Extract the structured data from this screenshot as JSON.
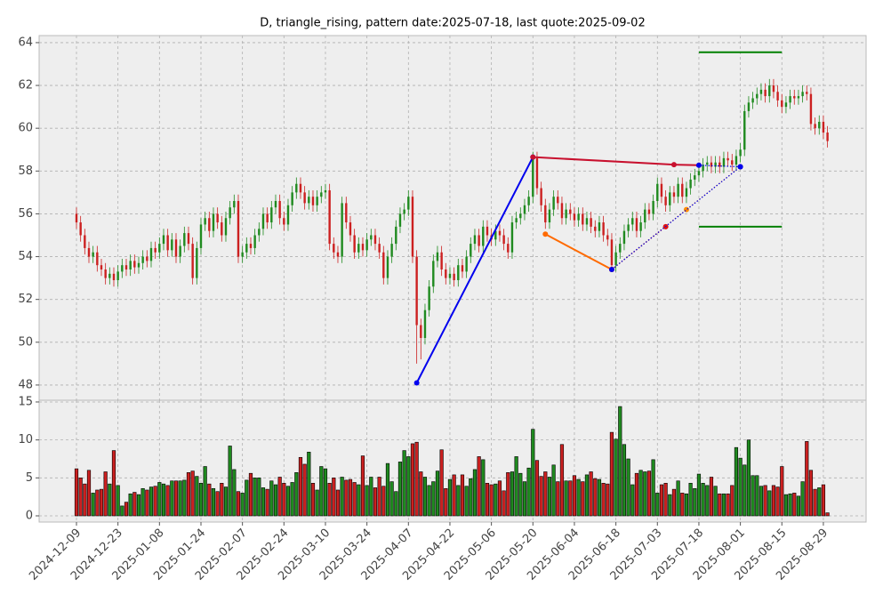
{
  "chart_data": {
    "type": "candlestick",
    "title": "D, triangle_rising, pattern date:2025-07-18, last quote:2025-09-02",
    "grid": true,
    "up_color": "#1f8a1f",
    "down_color": "#cc2020",
    "xlim": [
      -9,
      190.3
    ],
    "xticks": [
      {
        "value": 0,
        "label": "2024-12-09"
      },
      {
        "value": 10,
        "label": "2024-12-23"
      },
      {
        "value": 20,
        "label": "2025-01-08"
      },
      {
        "value": 30,
        "label": "2025-01-24"
      },
      {
        "value": 40,
        "label": "2025-02-07"
      },
      {
        "value": 50,
        "label": "2025-02-24"
      },
      {
        "value": 60,
        "label": "2025-03-10"
      },
      {
        "value": 70,
        "label": "2025-03-24"
      },
      {
        "value": 80,
        "label": "2025-04-07"
      },
      {
        "value": 90,
        "label": "2025-04-22"
      },
      {
        "value": 100,
        "label": "2025-05-06"
      },
      {
        "value": 110,
        "label": "2025-05-20"
      },
      {
        "value": 120,
        "label": "2025-06-04"
      },
      {
        "value": 130,
        "label": "2025-06-18"
      },
      {
        "value": 140,
        "label": "2025-07-03"
      },
      {
        "value": 150,
        "label": "2025-07-18"
      },
      {
        "value": 160,
        "label": "2025-08-01"
      },
      {
        "value": 170,
        "label": "2025-08-15"
      },
      {
        "value": 180,
        "label": "2025-08-29"
      }
    ],
    "ylim": [
      47.29,
      64.33
    ],
    "yticks": [
      48,
      50,
      52,
      54,
      56,
      58,
      60,
      62,
      64
    ],
    "volume_ylim": [
      -0.82,
      15.23
    ],
    "volume_yticks": [
      0,
      5,
      10,
      15
    ],
    "open": [
      56.0,
      55.6,
      55.0,
      54.4,
      54.0,
      54.2,
      53.6,
      53.4,
      53.0,
      53.2,
      52.9,
      53.3,
      53.6,
      53.4,
      53.8,
      53.5,
      53.7,
      54.0,
      53.8,
      54.4,
      54.2,
      54.6,
      55.0,
      54.3,
      54.8,
      54.0,
      54.5,
      55.1,
      54.6,
      53.0,
      54.4,
      55.5,
      55.8,
      55.2,
      56.0,
      55.6,
      55.0,
      55.8,
      56.3,
      56.6,
      54.0,
      54.2,
      54.6,
      54.4,
      55.0,
      55.3,
      56.0,
      55.6,
      56.3,
      56.6,
      55.8,
      55.5,
      56.4,
      57.0,
      57.4,
      57.0,
      56.5,
      56.8,
      56.4,
      56.8,
      57.0,
      57.1,
      54.6,
      54.2,
      54.0,
      56.5,
      55.6,
      55.0,
      54.2,
      54.6,
      54.3,
      54.8,
      55.0,
      54.6,
      54.2,
      53.0,
      54.0,
      54.6,
      55.4,
      56.0,
      56.2,
      56.8,
      54.0,
      50.8,
      50.2,
      51.5,
      52.6,
      53.8,
      54.2,
      53.4,
      53.0,
      53.2,
      52.9,
      53.6,
      53.3,
      54.0,
      54.6,
      55.0,
      54.5,
      55.4,
      55.0,
      54.8,
      55.2,
      55.0,
      54.6,
      54.2,
      55.6,
      55.8,
      56.0,
      56.4,
      56.8,
      58.6,
      57.2,
      56.4,
      55.6,
      56.2,
      56.8,
      56.5,
      55.8,
      56.2,
      56.0,
      55.7,
      56.0,
      55.5,
      55.8,
      55.4,
      55.2,
      55.6,
      55.0,
      54.8,
      53.6,
      54.2,
      54.6,
      55.2,
      55.5,
      55.8,
      55.2,
      55.6,
      56.2,
      56.0,
      56.6,
      57.4,
      56.8,
      56.4,
      57.0,
      56.8,
      57.4,
      56.8,
      57.2,
      57.6,
      57.8,
      58.0,
      58.3,
      58.4,
      58.2,
      58.4,
      58.2,
      58.6,
      58.5,
      58.3,
      58.7,
      59.0,
      60.8,
      61.2,
      61.4,
      61.6,
      61.8,
      61.5,
      62.0,
      61.7,
      61.3,
      61.0,
      61.2,
      61.5,
      61.4,
      61.5,
      61.7,
      61.6,
      60.2,
      60.0,
      60.3,
      59.8
    ],
    "high": [
      56.3,
      55.9,
      55.3,
      54.7,
      54.5,
      54.5,
      53.9,
      53.7,
      53.5,
      53.5,
      53.6,
      53.9,
      53.9,
      54.1,
      54.1,
      54.0,
      54.3,
      54.3,
      54.7,
      54.7,
      54.9,
      55.3,
      55.3,
      55.1,
      55.1,
      54.8,
      55.4,
      55.4,
      54.9,
      54.7,
      55.8,
      56.1,
      56.1,
      56.3,
      56.3,
      55.9,
      56.1,
      56.6,
      56.9,
      56.9,
      54.5,
      54.9,
      54.9,
      55.3,
      55.6,
      56.3,
      56.3,
      56.6,
      56.9,
      56.9,
      56.1,
      56.7,
      57.3,
      57.7,
      57.7,
      57.3,
      57.1,
      57.1,
      57.1,
      57.3,
      57.4,
      57.4,
      54.9,
      54.5,
      56.8,
      56.8,
      55.9,
      55.3,
      54.9,
      54.9,
      55.1,
      55.3,
      55.3,
      54.9,
      54.5,
      54.3,
      54.9,
      55.7,
      56.3,
      56.5,
      57.1,
      57.1,
      54.3,
      51.1,
      51.8,
      52.9,
      54.1,
      54.5,
      54.5,
      53.7,
      53.5,
      53.5,
      53.9,
      53.9,
      54.3,
      54.9,
      55.3,
      55.3,
      55.7,
      55.7,
      55.3,
      55.5,
      55.5,
      55.3,
      54.9,
      55.9,
      56.1,
      56.3,
      56.7,
      57.1,
      58.9,
      58.9,
      57.5,
      56.7,
      56.5,
      57.1,
      57.1,
      56.8,
      56.5,
      56.5,
      56.3,
      56.3,
      56.3,
      56.1,
      56.1,
      55.7,
      55.9,
      55.9,
      55.3,
      55.1,
      54.5,
      54.9,
      55.5,
      55.8,
      56.1,
      56.1,
      55.9,
      56.5,
      56.5,
      56.9,
      57.7,
      57.7,
      57.1,
      57.3,
      57.3,
      57.7,
      57.7,
      57.5,
      57.9,
      58.1,
      58.3,
      58.6,
      58.7,
      58.7,
      58.7,
      58.7,
      58.9,
      58.9,
      58.8,
      59.0,
      59.3,
      61.1,
      61.5,
      61.7,
      61.9,
      62.1,
      62.1,
      62.3,
      62.3,
      62.0,
      61.6,
      61.5,
      61.8,
      61.8,
      61.8,
      62.0,
      62.0,
      61.9,
      60.5,
      60.6,
      60.6,
      60.1
    ],
    "low": [
      55.3,
      54.7,
      54.1,
      53.7,
      53.7,
      53.3,
      53.1,
      52.7,
      52.7,
      52.6,
      52.6,
      53.0,
      53.1,
      53.1,
      53.2,
      53.2,
      53.4,
      53.5,
      53.5,
      53.9,
      53.9,
      54.3,
      54.0,
      54.0,
      53.7,
      53.7,
      54.2,
      54.3,
      52.7,
      52.7,
      54.1,
      55.2,
      54.9,
      54.9,
      55.3,
      54.7,
      54.7,
      55.5,
      56.0,
      53.7,
      53.7,
      53.9,
      54.1,
      54.1,
      54.7,
      55.0,
      55.3,
      55.3,
      56.0,
      55.5,
      55.2,
      55.2,
      56.1,
      56.7,
      56.7,
      56.2,
      56.2,
      56.1,
      56.1,
      56.5,
      56.7,
      54.3,
      53.9,
      53.7,
      53.7,
      55.3,
      54.7,
      53.9,
      53.9,
      54.0,
      54.0,
      54.5,
      54.3,
      53.9,
      52.7,
      52.7,
      53.7,
      54.3,
      55.1,
      55.7,
      55.9,
      53.7,
      49.0,
      49.2,
      49.9,
      51.2,
      52.3,
      53.5,
      53.1,
      52.7,
      52.7,
      52.6,
      52.6,
      53.0,
      53.0,
      53.7,
      54.3,
      54.2,
      54.2,
      54.7,
      54.5,
      54.5,
      54.7,
      54.3,
      53.9,
      53.9,
      55.3,
      55.5,
      55.7,
      56.1,
      56.5,
      56.9,
      56.1,
      55.3,
      55.3,
      55.9,
      56.2,
      55.5,
      55.5,
      55.7,
      55.4,
      55.4,
      55.2,
      55.2,
      55.1,
      54.9,
      54.9,
      54.7,
      54.5,
      53.3,
      53.3,
      53.9,
      54.3,
      54.9,
      55.2,
      54.9,
      54.9,
      55.3,
      55.7,
      55.7,
      56.3,
      56.5,
      56.1,
      56.1,
      56.5,
      56.5,
      56.5,
      56.5,
      56.9,
      57.3,
      57.5,
      57.7,
      58.0,
      57.9,
      57.9,
      57.9,
      57.9,
      58.2,
      58.0,
      58.0,
      58.4,
      58.7,
      60.5,
      60.9,
      61.1,
      61.3,
      61.2,
      61.2,
      61.4,
      61.0,
      60.7,
      60.7,
      60.9,
      61.1,
      61.1,
      61.2,
      61.3,
      59.9,
      59.7,
      59.7,
      59.5,
      59.1
    ],
    "close": [
      55.6,
      55.0,
      54.4,
      54.0,
      54.2,
      53.6,
      53.4,
      53.0,
      53.2,
      52.9,
      53.3,
      53.6,
      53.4,
      53.8,
      53.5,
      53.7,
      54.0,
      53.8,
      54.4,
      54.2,
      54.6,
      55.0,
      54.3,
      54.8,
      54.0,
      54.5,
      55.1,
      54.6,
      53.0,
      54.4,
      55.5,
      55.8,
      55.2,
      56.0,
      55.6,
      55.0,
      55.8,
      56.3,
      56.6,
      54.0,
      54.2,
      54.6,
      54.4,
      55.0,
      55.3,
      56.0,
      55.6,
      56.3,
      56.6,
      55.8,
      55.5,
      56.4,
      57.0,
      57.4,
      57.0,
      56.5,
      56.8,
      56.4,
      56.8,
      57.0,
      57.1,
      54.6,
      54.2,
      54.0,
      56.5,
      55.6,
      55.0,
      54.2,
      54.6,
      54.3,
      54.8,
      55.0,
      54.6,
      54.2,
      53.0,
      54.0,
      54.6,
      55.4,
      56.0,
      56.2,
      56.8,
      54.0,
      50.8,
      50.2,
      51.5,
      52.6,
      53.8,
      54.2,
      53.4,
      53.0,
      53.2,
      52.9,
      53.6,
      53.3,
      54.0,
      54.6,
      55.0,
      54.5,
      55.4,
      55.0,
      54.8,
      55.2,
      55.0,
      54.6,
      54.2,
      55.6,
      55.8,
      56.0,
      56.4,
      56.8,
      58.6,
      57.2,
      56.4,
      55.6,
      56.2,
      56.8,
      56.5,
      55.8,
      56.2,
      56.0,
      55.7,
      56.0,
      55.5,
      55.8,
      55.4,
      55.2,
      55.6,
      55.0,
      54.8,
      53.6,
      54.2,
      54.6,
      55.2,
      55.5,
      55.8,
      55.2,
      55.6,
      56.2,
      56.0,
      56.6,
      57.4,
      56.8,
      56.4,
      57.0,
      56.8,
      57.4,
      56.8,
      57.2,
      57.6,
      57.8,
      58.0,
      58.3,
      58.4,
      58.2,
      58.4,
      58.2,
      58.6,
      58.5,
      58.3,
      58.7,
      59.0,
      60.8,
      61.2,
      61.4,
      61.6,
      61.8,
      61.5,
      62.0,
      61.7,
      61.3,
      61.0,
      61.2,
      61.5,
      61.4,
      61.5,
      61.7,
      61.6,
      60.2,
      60.0,
      60.3,
      59.8,
      59.4
    ],
    "volume": [
      6.2,
      5.0,
      4.2,
      6.0,
      3.0,
      3.4,
      3.5,
      5.8,
      4.2,
      8.6,
      4.0,
      1.3,
      1.8,
      2.9,
      3.1,
      2.8,
      3.6,
      3.4,
      3.8,
      3.9,
      4.4,
      4.2,
      4.0,
      4.6,
      4.6,
      4.6,
      4.7,
      5.7,
      5.9,
      5.2,
      4.3,
      6.5,
      4.2,
      3.6,
      3.2,
      4.3,
      3.8,
      9.2,
      6.1,
      3.2,
      3.0,
      4.7,
      5.6,
      5.0,
      5.0,
      3.7,
      3.5,
      4.6,
      4.1,
      5.1,
      4.3,
      3.9,
      4.4,
      5.7,
      7.7,
      6.8,
      8.4,
      4.3,
      3.4,
      6.5,
      6.2,
      4.3,
      5.0,
      3.4,
      5.1,
      4.7,
      4.8,
      4.4,
      4.1,
      7.9,
      4.0,
      5.1,
      3.7,
      5.1,
      3.9,
      6.9,
      4.5,
      3.2,
      7.1,
      8.6,
      7.8,
      9.5,
      9.7,
      5.8,
      5.1,
      4.0,
      4.5,
      5.9,
      8.7,
      3.6,
      4.8,
      5.4,
      4.0,
      5.4,
      3.9,
      4.9,
      6.1,
      7.8,
      7.4,
      4.3,
      4.1,
      4.2,
      4.6,
      3.3,
      5.7,
      5.8,
      7.8,
      5.6,
      4.5,
      6.3,
      11.4,
      7.3,
      5.2,
      5.8,
      5.1,
      6.7,
      4.5,
      9.4,
      4.6,
      4.6,
      5.3,
      4.8,
      4.5,
      5.4,
      5.8,
      4.9,
      4.8,
      4.3,
      4.2,
      11.0,
      10.1,
      14.4,
      9.4,
      7.5,
      4.1,
      5.6,
      6.0,
      5.8,
      5.9,
      7.4,
      3.0,
      4.1,
      4.3,
      2.8,
      3.5,
      4.6,
      3.0,
      2.9,
      4.3,
      3.6,
      5.5,
      4.3,
      4.0,
      5.1,
      3.9,
      2.9,
      2.9,
      2.9,
      4.0,
      9.0,
      7.6,
      6.7,
      10.0,
      5.3,
      5.3,
      3.9,
      4.0,
      3.3,
      4.0,
      3.8,
      6.5,
      2.8,
      2.9,
      3.0,
      2.6,
      4.5,
      9.8,
      6.0,
      3.5,
      3.7,
      4.1,
      0.4
    ],
    "overlays": [
      {
        "color": "#0000ee",
        "style": "solid",
        "markers": true,
        "x": [
          82,
          110
        ],
        "values": [
          48.1,
          58.65
        ]
      },
      {
        "color": "#c8102e",
        "style": "solid",
        "markers": true,
        "x": [
          110,
          144,
          150
        ],
        "values": [
          58.65,
          58.3,
          58.27
        ]
      },
      {
        "color": "#ff6a00",
        "style": "solid",
        "markers": true,
        "x": [
          113,
          129
        ],
        "values": [
          55.05,
          53.4
        ]
      },
      {
        "color": "#e01010",
        "style": "dotted",
        "markers": true,
        "x": [
          129,
          142
        ],
        "values": [
          53.4,
          55.4
        ]
      },
      {
        "color": "#ff8c00",
        "style": "dotted",
        "markers": true,
        "x": [
          129,
          147,
          160
        ],
        "values": [
          53.4,
          56.2,
          58.2
        ]
      },
      {
        "color": "#0000ee",
        "style": "dotted",
        "markers": true,
        "x": [
          129,
          160
        ],
        "values": [
          53.4,
          58.2
        ]
      },
      {
        "color": "#0000ee",
        "style": "dotted",
        "markers": true,
        "x": [
          150,
          160
        ],
        "values": [
          58.27,
          58.2
        ]
      },
      {
        "color": "#008000",
        "style": "solid",
        "markers": false,
        "x": [
          150,
          170
        ],
        "values": [
          63.55,
          63.55
        ]
      },
      {
        "color": "#008000",
        "style": "solid",
        "markers": false,
        "x": [
          150,
          170
        ],
        "values": [
          55.4,
          55.4
        ]
      }
    ]
  }
}
